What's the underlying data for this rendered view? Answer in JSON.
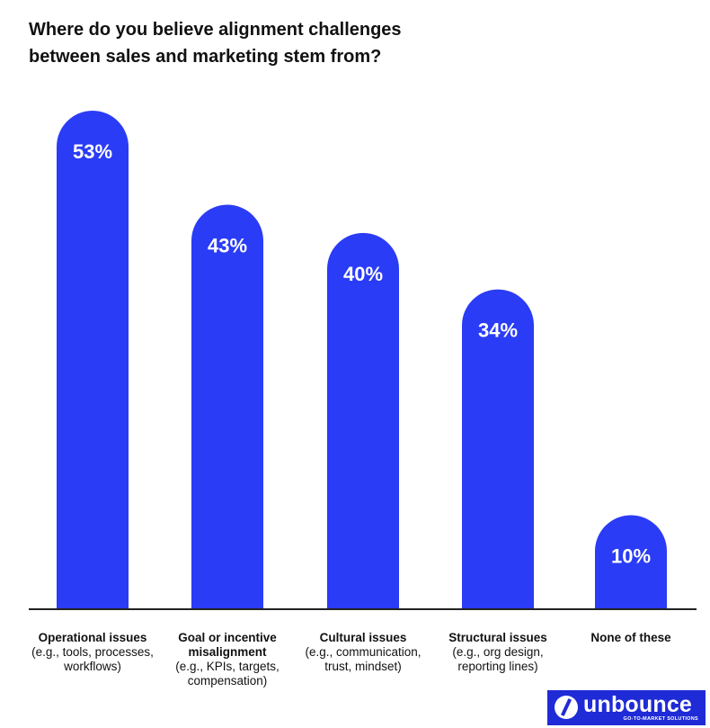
{
  "chart_data": {
    "type": "bar",
    "title_lines": [
      "Where do you believe alignment challenges",
      "between sales and marketing stem from?"
    ],
    "categories": [
      {
        "main": [
          "Operational issues"
        ],
        "sub": [
          "(e.g., tools, processes,",
          "workflows)"
        ]
      },
      {
        "main": [
          "Goal or incentive",
          "misalignment"
        ],
        "sub": [
          "(e.g., KPIs, targets,",
          "compensation)"
        ]
      },
      {
        "main": [
          "Cultural issues"
        ],
        "sub": [
          "(e.g., communication,",
          "trust, mindset)"
        ]
      },
      {
        "main": [
          "Structural issues"
        ],
        "sub": [
          "(e.g., org design,",
          "reporting lines)"
        ]
      },
      {
        "main": [
          "None of these"
        ],
        "sub": []
      }
    ],
    "values": [
      53,
      43,
      40,
      34,
      10
    ],
    "value_labels": [
      "53%",
      "43%",
      "40%",
      "34%",
      "10%"
    ],
    "unit": "%",
    "xlabel": "",
    "ylabel": "",
    "ylim": [
      0,
      56
    ],
    "grid": false,
    "legend": "none"
  },
  "colors": {
    "bar": "#2a3cf5",
    "bar_text": "#ffffff",
    "axis": "#222222",
    "brand": "#1f2bd6"
  },
  "logo": {
    "name": "unbounce",
    "tagline": "GO-TO-MARKET SOLUTIONS"
  }
}
